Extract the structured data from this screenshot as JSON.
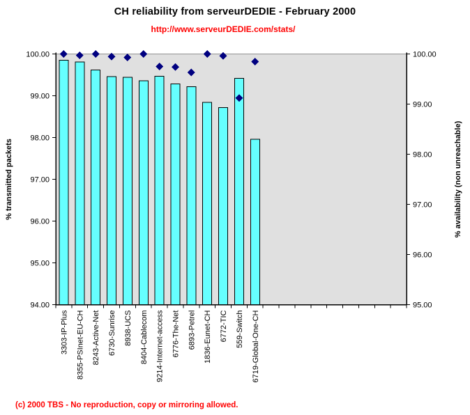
{
  "page": {
    "title": "CH reliability from serveurDEDIE - February 2000",
    "subtitle_url": "http://www.serveurDEDIE.com/stats/",
    "footer": "(c) 2000 TBS - No reproduction, copy or mirroring allowed."
  },
  "colors": {
    "bar_fill": "#66FFFF",
    "bar_stroke": "#000000",
    "marker_fill": "#000080",
    "plot_background": "#E0E0E0",
    "plot_top_border": "#909090",
    "axis_line": "#000000",
    "red_text": "#FF0000",
    "title_text": "#000000"
  },
  "chart_data": {
    "type": "bar",
    "title": "CH reliability from serveurDEDIE - February 2000",
    "subtitle": "http://www.serveurDEDIE.com/stats/",
    "categories": [
      "3303-IP-Plus",
      "8355-PSInet-EU-CH",
      "8243-Active-Net",
      "6730-Sunrise",
      "8938-UCS",
      "8404-Cablecom",
      "9214-Internet-access",
      "6776-The-Net",
      "6893-Petrel",
      "1836-Eunet-CH",
      "6772-TIC",
      "559-Switch",
      "6719-Global-One-CH"
    ],
    "series": [
      {
        "name": "% transmitted packets",
        "type": "bar",
        "axis": "left",
        "values": [
          99.85,
          99.81,
          99.62,
          99.46,
          99.44,
          99.36,
          99.47,
          99.28,
          99.22,
          98.84,
          98.72,
          99.42,
          97.96
        ]
      },
      {
        "name": "% availability (non unreachable)",
        "type": "scatter",
        "marker": "diamond",
        "axis": "right",
        "values": [
          100.0,
          99.97,
          100.0,
          99.95,
          99.93,
          100.0,
          99.75,
          99.74,
          99.63,
          100.0,
          99.96,
          99.12,
          99.85
        ]
      }
    ],
    "left_axis": {
      "label": "% transmitted packets",
      "min": 94,
      "max": 100,
      "tick_step": 1,
      "tick_format_decimals": 2
    },
    "right_axis": {
      "label": "% availability (non unreachable)",
      "min": 95,
      "max": 100,
      "tick_step": 1,
      "tick_format_decimals": 2
    },
    "grid": false,
    "legend": "none"
  }
}
